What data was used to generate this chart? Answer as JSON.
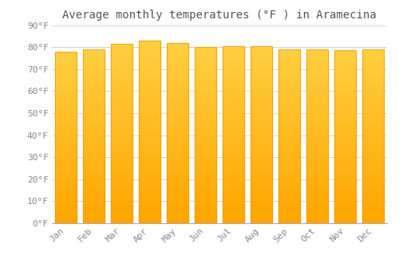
{
  "title": "Average monthly temperatures (°F ) in Aramecina",
  "months": [
    "Jan",
    "Feb",
    "Mar",
    "Apr",
    "May",
    "Jun",
    "Jul",
    "Aug",
    "Sep",
    "Oct",
    "Nov",
    "Dec"
  ],
  "values": [
    78.0,
    79.0,
    81.5,
    83.0,
    82.0,
    80.0,
    80.5,
    80.5,
    79.0,
    79.0,
    78.5,
    79.0
  ],
  "bar_color_top": "#FFCF40",
  "bar_color_bottom": "#FFA500",
  "bar_edge_color": "#E89800",
  "background_color": "#FFFFFF",
  "grid_color": "#CCCCCC",
  "text_color": "#888888",
  "ylim": [
    0,
    90
  ],
  "yticks": [
    0,
    10,
    20,
    30,
    40,
    50,
    60,
    70,
    80,
    90
  ],
  "ytick_labels": [
    "0°F",
    "10°F",
    "20°F",
    "30°F",
    "40°F",
    "50°F",
    "60°F",
    "70°F",
    "80°F",
    "90°F"
  ],
  "title_fontsize": 10,
  "tick_fontsize": 8,
  "bar_width": 0.75
}
